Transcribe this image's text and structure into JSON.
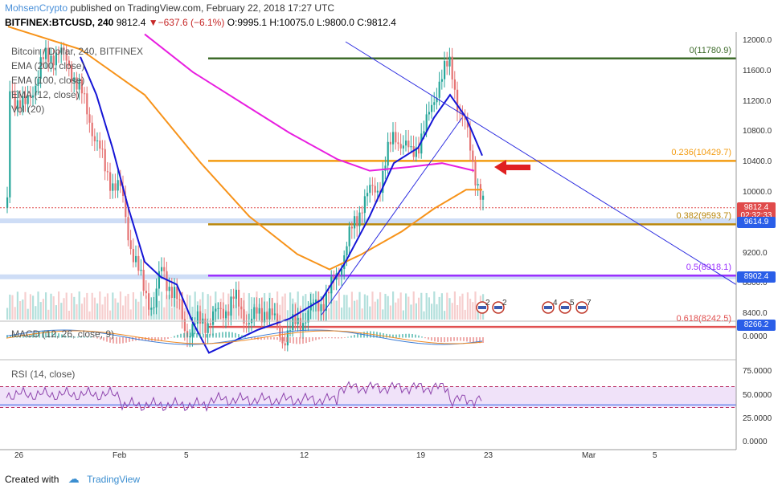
{
  "header": {
    "user": "MohsenCrypto",
    "published": "published on TradingView.com, February 22, 2018 17:27 UTC",
    "symbol": "BITFINEX:BTCUSD, 240",
    "price": "9812.4",
    "change": "▼−637.6 (−6.1%)",
    "o": "O:9995.1",
    "h": "H:10075.0",
    "l": "L:9800.0",
    "c": "C:9812.4"
  },
  "legend": {
    "title": "Bitcoin / Dollar, 240, BITFINEX",
    "ema200": "EMA (200, close)",
    "ema100": "EMA (100, close)",
    "ema12": "EMA (12, close)",
    "vol": "Vol (20)"
  },
  "price_axis": [
    "12000.0",
    "11600.0",
    "11200.0",
    "10800.0",
    "10400.0",
    "10000.0",
    "9200.0",
    "8800.0",
    "8400.0"
  ],
  "price_tags": [
    {
      "label": "9812.4",
      "color": "#e04a4a",
      "price": 9812.4
    },
    {
      "label": "02:32:33",
      "color": "#e04a4a",
      "price": 9700
    },
    {
      "label": "9614.9",
      "color": "#2a5ee8",
      "price": 9614.9
    },
    {
      "label": "8902.4",
      "color": "#2a5ee8",
      "price": 8902.4
    },
    {
      "label": "8266.2",
      "color": "#2a5ee8",
      "price": 8266.2
    }
  ],
  "fib_levels": [
    {
      "label": "0(11780.9)",
      "price": 11780.9,
      "color": "#3d6b2a"
    },
    {
      "label": "0.236(10429.7)",
      "price": 10429.7,
      "color": "#f39c12"
    },
    {
      "label": "0.382(9593.7)",
      "price": 9593.7,
      "color": "#b8860b"
    },
    {
      "label": "0.5(8918.1)",
      "price": 8918.1,
      "color": "#9b30ff"
    },
    {
      "label": "0.618(8242.5)",
      "price": 8242.5,
      "color": "#e05050"
    }
  ],
  "macd": {
    "label": "MACD (12, 26, close, 9)",
    "axis": "0.0000"
  },
  "rsi": {
    "label": "RSI (14, close)",
    "axis": [
      "75.0000",
      "50.0000",
      "25.0000",
      "0.0000"
    ]
  },
  "x_axis": [
    "26",
    "Feb",
    "5",
    "12",
    "19",
    "23",
    "Mar",
    "5"
  ],
  "events": {
    "a": "2",
    "b": "2",
    "c": "4",
    "d": "5",
    "e": "7"
  },
  "footer": {
    "created": "Created with",
    "brand": "TradingView"
  },
  "colors": {
    "up": "#26a69a",
    "down": "#e57373",
    "ema12": "#1515d6",
    "ema100": "#f7931a",
    "ema200": "#e81ee0"
  }
}
